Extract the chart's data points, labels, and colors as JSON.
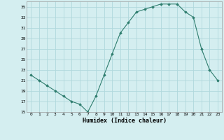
{
  "x": [
    0,
    1,
    2,
    3,
    4,
    5,
    6,
    7,
    8,
    9,
    10,
    11,
    12,
    13,
    14,
    15,
    16,
    17,
    18,
    19,
    20,
    21,
    22,
    23
  ],
  "y": [
    22,
    21,
    20,
    19,
    18,
    17,
    16.5,
    15,
    18,
    22,
    26,
    30,
    32,
    34,
    34.5,
    35,
    35.5,
    35.5,
    35.5,
    34,
    33,
    27,
    23,
    21
  ],
  "line_color": "#2e7d6e",
  "marker_color": "#2e7d6e",
  "bg_color": "#d4eef0",
  "grid_color": "#b0d8dc",
  "xlabel": "Humidex (Indice chaleur)",
  "ylim": [
    15,
    36
  ],
  "xlim": [
    -0.5,
    23.5
  ],
  "yticks": [
    15,
    17,
    19,
    21,
    23,
    25,
    27,
    29,
    31,
    33,
    35
  ],
  "xticks": [
    0,
    1,
    2,
    3,
    4,
    5,
    6,
    7,
    8,
    9,
    10,
    11,
    12,
    13,
    14,
    15,
    16,
    17,
    18,
    19,
    20,
    21,
    22,
    23
  ]
}
